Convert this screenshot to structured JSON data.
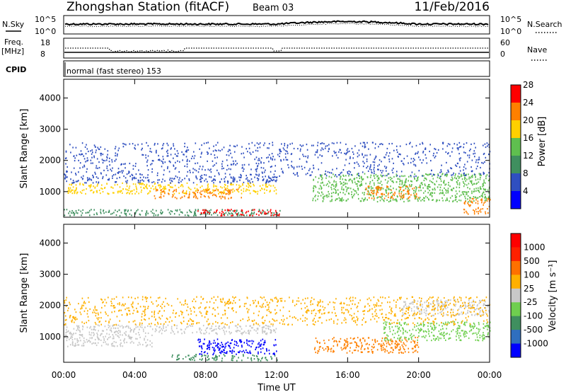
{
  "header": {
    "station": "Zhongshan Station (fitACF)",
    "beam": "Beam 03",
    "date": "11/Feb/2016"
  },
  "top_panels": {
    "nsky_label": "N.Sky",
    "nsearch_label": "N.Search",
    "nsky_ticks": [
      "10^5",
      "10^0"
    ],
    "nsearch_ticks": [
      "10^5",
      "10^0"
    ],
    "freq_label_line1": "Freq.",
    "freq_label_line2": "[MHz]",
    "freq_ticks": [
      "18",
      "8"
    ],
    "nave_label": "Nave",
    "nave_ticks": [
      "60",
      "0"
    ],
    "cpid_label": "CPID",
    "cpid_text": "normal (fast stereo) 153"
  },
  "chart_data": [
    {
      "type": "heatmap",
      "panel": "power",
      "ylabel": "Slant Range [km]",
      "xlabel": "",
      "x_range_hours": [
        0,
        24
      ],
      "ylim": [
        180,
        4600
      ],
      "y_ticks": [
        1000,
        2000,
        3000,
        4000
      ],
      "colorbar_label": "Power [dB]",
      "colorbar_ticks": [
        "4",
        "8",
        "12",
        "16",
        "20",
        "24",
        "28"
      ],
      "colorbar_colors": [
        "#0000ff",
        "#2f4fc0",
        "#3f8f5f",
        "#5fbf4f",
        "#ffd000",
        "#ff8000",
        "#ff0000"
      ],
      "scatter_bands": [
        {
          "t0": 0,
          "t1": 12.5,
          "r0": 250,
          "r1": 450,
          "color": "#3f8f5f"
        },
        {
          "t0": 7.5,
          "t1": 12.3,
          "r0": 250,
          "r1": 450,
          "color": "#ff0000"
        },
        {
          "t0": 0.2,
          "t1": 12,
          "r0": 950,
          "r1": 1300,
          "color": "#ffd000"
        },
        {
          "t0": 5,
          "t1": 10,
          "r0": 800,
          "r1": 1100,
          "color": "#ff8000"
        },
        {
          "t0": 0,
          "t1": 12,
          "r0": 1300,
          "r1": 1500,
          "color": "#2f4fc0"
        },
        {
          "t0": 14,
          "t1": 24,
          "r0": 700,
          "r1": 1600,
          "color": "#5fbf4f"
        },
        {
          "t0": 17,
          "t1": 20,
          "r0": 800,
          "r1": 1200,
          "color": "#ff8000"
        },
        {
          "t0": 22.5,
          "t1": 24,
          "r0": 300,
          "r1": 800,
          "color": "#ff8000"
        },
        {
          "t0": 0,
          "t1": 24,
          "r0": 1500,
          "r1": 2600,
          "color": "#2f4fc0"
        }
      ]
    },
    {
      "type": "heatmap",
      "panel": "velocity",
      "ylabel": "Slant Range [km]",
      "xlabel": "Time UT",
      "x_range_hours": [
        0,
        24
      ],
      "x_ticks": [
        "00:00",
        "04:00",
        "08:00",
        "12:00",
        "16:00",
        "20:00",
        "00:00"
      ],
      "ylim": [
        180,
        4600
      ],
      "y_ticks": [
        1000,
        2000,
        3000,
        4000
      ],
      "colorbar_label": "Velocity [m s⁻¹]",
      "colorbar_ticks": [
        "1000",
        "500",
        "100",
        "25",
        "-25",
        "-100",
        "-500",
        "-1000"
      ],
      "colorbar_colors": [
        "#0000ff",
        "#2f6fbf",
        "#3f8f5f",
        "#6fcf4f",
        "#c8c8c8",
        "#ffb000",
        "#ff7000",
        "#ff2000",
        "#ff0000"
      ],
      "scatter_bands": [
        {
          "t0": 0,
          "t1": 12,
          "r0": 1100,
          "r1": 1400,
          "color": "#c8c8c8"
        },
        {
          "t0": 0,
          "t1": 5,
          "r0": 700,
          "r1": 1100,
          "color": "#c8c8c8"
        },
        {
          "t0": 7.5,
          "t1": 12,
          "r0": 450,
          "r1": 950,
          "color": "#0000ff"
        },
        {
          "t0": 6,
          "t1": 12,
          "r0": 250,
          "r1": 450,
          "color": "#3f8f5f"
        },
        {
          "t0": 14,
          "t1": 20,
          "r0": 500,
          "r1": 1000,
          "color": "#ff8000"
        },
        {
          "t0": 18,
          "t1": 24,
          "r0": 900,
          "r1": 1500,
          "color": "#6fcf4f"
        },
        {
          "t0": 19,
          "t1": 24,
          "r0": 1700,
          "r1": 2200,
          "color": "#c8c8c8"
        },
        {
          "t0": 0,
          "t1": 24,
          "r0": 1400,
          "r1": 2300,
          "color": "#ffb000"
        }
      ]
    }
  ]
}
